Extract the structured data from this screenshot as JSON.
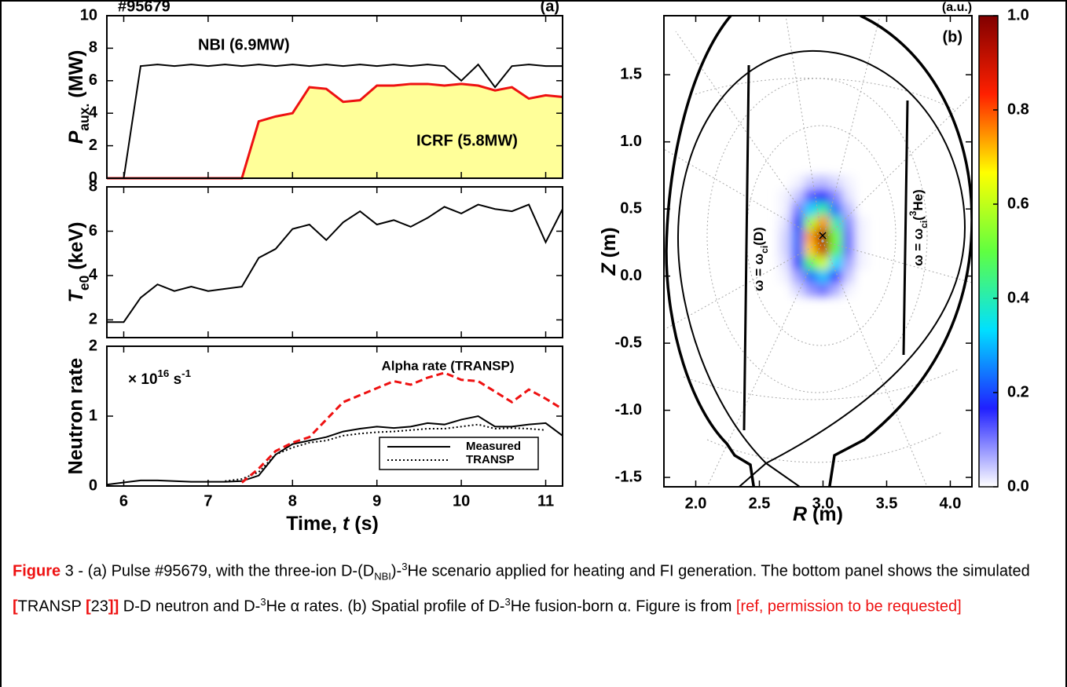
{
  "chart_data": [
    {
      "type": "line",
      "label": "#95679",
      "panel": "(a)",
      "ylabel": [
        "P",
        "aux.",
        " (MW)"
      ],
      "x": [
        5.8,
        6.0,
        6.2,
        6.4,
        6.6,
        6.8,
        7.0,
        7.2,
        7.4,
        7.6,
        7.8,
        8.0,
        8.2,
        8.4,
        8.6,
        8.8,
        9.0,
        9.2,
        9.4,
        9.6,
        9.8,
        10.0,
        10.2,
        10.4,
        10.6,
        10.8,
        11.0,
        11.2
      ],
      "xlim": [
        5.8,
        11.2
      ],
      "ylim": [
        0,
        10
      ],
      "yticks": [
        0,
        2,
        4,
        6,
        8,
        10
      ],
      "series": [
        {
          "name": "NBI (6.9MW)",
          "color": "#000000",
          "style": "solid",
          "values": [
            0,
            0,
            6.9,
            7.0,
            6.9,
            7.0,
            6.9,
            7.0,
            6.9,
            7.0,
            6.9,
            7.0,
            6.9,
            7.0,
            6.9,
            7.0,
            6.9,
            7.0,
            6.9,
            7.0,
            6.9,
            6.0,
            7.0,
            5.6,
            6.9,
            7.0,
            6.9,
            6.9
          ]
        },
        {
          "name": "ICRF (5.8MW)",
          "color": "#ee1111",
          "fill": "#ffff99",
          "style": "solid",
          "values": [
            0,
            0,
            0,
            0,
            0,
            0,
            0,
            0,
            0,
            3.5,
            3.8,
            4.0,
            5.6,
            5.5,
            4.7,
            4.8,
            5.7,
            5.7,
            5.8,
            5.8,
            5.7,
            5.8,
            5.7,
            5.4,
            5.6,
            4.9,
            5.1,
            5.0
          ]
        }
      ]
    },
    {
      "type": "line",
      "ylabel": [
        "T",
        "e0",
        " (keV)"
      ],
      "x": [
        5.8,
        6.0,
        6.2,
        6.4,
        6.6,
        6.8,
        7.0,
        7.2,
        7.4,
        7.6,
        7.8,
        8.0,
        8.2,
        8.4,
        8.6,
        8.8,
        9.0,
        9.2,
        9.4,
        9.6,
        9.8,
        10.0,
        10.2,
        10.4,
        10.6,
        10.8,
        11.0,
        11.2
      ],
      "xlim": [
        5.8,
        11.2
      ],
      "ylim": [
        1.2,
        8
      ],
      "yticks": [
        2,
        4,
        6,
        8
      ],
      "series": [
        {
          "color": "#000000",
          "style": "solid",
          "values": [
            1.9,
            1.9,
            3.0,
            3.6,
            3.3,
            3.5,
            3.3,
            3.4,
            3.5,
            4.8,
            5.2,
            6.1,
            6.3,
            5.6,
            6.4,
            6.9,
            6.3,
            6.5,
            6.2,
            6.6,
            7.1,
            6.8,
            7.2,
            7.0,
            6.9,
            7.2,
            5.5,
            7.0
          ]
        }
      ]
    },
    {
      "type": "line",
      "ylabel": "Neutron rate",
      "xlabel": [
        "Time, ",
        "t",
        " (s)"
      ],
      "units": [
        "× 10",
        "16",
        " s",
        "-1"
      ],
      "x": [
        5.8,
        6.0,
        6.2,
        6.4,
        6.6,
        6.8,
        7.0,
        7.2,
        7.4,
        7.6,
        7.8,
        8.0,
        8.2,
        8.4,
        8.6,
        8.8,
        9.0,
        9.2,
        9.4,
        9.6,
        9.8,
        10.0,
        10.2,
        10.4,
        10.6,
        10.8,
        11.0,
        11.2
      ],
      "xlim": [
        5.8,
        11.2
      ],
      "xticks": [
        6,
        7,
        8,
        9,
        10,
        11
      ],
      "ylim": [
        0,
        2
      ],
      "yticks": [
        0,
        1,
        2
      ],
      "legend": "lower right",
      "series": [
        {
          "name": "Measured",
          "color": "#000000",
          "style": "solid",
          "values": [
            0.02,
            0.05,
            0.08,
            0.08,
            0.07,
            0.06,
            0.06,
            0.06,
            0.07,
            0.15,
            0.45,
            0.6,
            0.65,
            0.7,
            0.78,
            0.82,
            0.85,
            0.83,
            0.85,
            0.9,
            0.88,
            0.95,
            1.0,
            0.85,
            0.85,
            0.88,
            0.9,
            0.72
          ]
        },
        {
          "name": "TRANSP",
          "color": "#000000",
          "style": "dotted",
          "values": [
            null,
            null,
            null,
            null,
            null,
            null,
            null,
            0.07,
            0.1,
            0.2,
            0.45,
            0.55,
            0.62,
            0.65,
            0.72,
            0.75,
            0.77,
            0.78,
            0.8,
            0.82,
            0.82,
            0.85,
            0.88,
            0.82,
            0.83,
            0.82,
            0.8,
            null
          ]
        },
        {
          "name": "Alpha rate (TRANSP)",
          "color": "#ee1111",
          "style": "dashed",
          "values": [
            null,
            null,
            null,
            null,
            null,
            null,
            null,
            null,
            0.05,
            0.25,
            0.5,
            0.62,
            0.7,
            0.95,
            1.2,
            1.3,
            1.4,
            1.5,
            1.45,
            1.55,
            1.62,
            1.52,
            1.5,
            1.35,
            1.2,
            1.38,
            1.25,
            1.1
          ]
        }
      ]
    },
    {
      "type": "heatmap",
      "panel": "(b)",
      "colorbar_label": "(a.u.)",
      "xlabel": [
        "R",
        " (m)"
      ],
      "ylabel": [
        "Z",
        " (m)"
      ],
      "annotations": [
        [
          "ω = ω",
          "ci",
          "(D)"
        ],
        [
          "ω = ω",
          "ci",
          "(",
          "3",
          "He)"
        ]
      ],
      "xlim": [
        1.75,
        4.17
      ],
      "ylim": [
        -1.57,
        1.94
      ],
      "xticks": [
        {
          "value": 2,
          "label": "2.0"
        },
        2.5,
        {
          "value": 3,
          "label": "3.0"
        },
        3.5,
        {
          "value": 4,
          "label": "4.0"
        }
      ],
      "yticks": [
        1.5,
        {
          "value": 1,
          "label": "1.0"
        },
        0.5,
        {
          "value": 0,
          "label": "0.0"
        },
        -0.5,
        {
          "value": -1,
          "label": "-1.0"
        },
        -1.5
      ],
      "clim": [
        0,
        1
      ],
      "cticks": [
        {
          "value": 0,
          "label": "0.0"
        },
        0.2,
        0.4,
        0.6,
        0.8,
        {
          "value": 1,
          "label": "1.0"
        }
      ],
      "colorscale": [
        "#ffffff",
        "#2020ff",
        "#00e0ff",
        "#60ff40",
        "#ffff00",
        "#ff2000",
        "#800000"
      ],
      "x": [
        2.7,
        2.8,
        2.9,
        3.0,
        3.1,
        3.2,
        3.3
      ],
      "y": [
        -0.1,
        0.0,
        0.1,
        0.2,
        0.3,
        0.4,
        0.5,
        0.6,
        0.7
      ],
      "values": [
        [
          0.0,
          0.03,
          0.08,
          0.11,
          0.06,
          0.01,
          0.0
        ],
        [
          0.01,
          0.07,
          0.23,
          0.31,
          0.16,
          0.04,
          0.0
        ],
        [
          0.02,
          0.15,
          0.47,
          0.62,
          0.33,
          0.07,
          0.01
        ],
        [
          0.03,
          0.22,
          0.7,
          0.91,
          0.49,
          0.11,
          0.01
        ],
        [
          0.03,
          0.23,
          0.74,
          0.97,
          0.52,
          0.11,
          0.01
        ],
        [
          0.02,
          0.18,
          0.57,
          0.75,
          0.4,
          0.09,
          0.01
        ],
        [
          0.01,
          0.1,
          0.32,
          0.42,
          0.23,
          0.05,
          0.0
        ],
        [
          0.01,
          0.04,
          0.13,
          0.17,
          0.09,
          0.02,
          0.0
        ],
        [
          0.0,
          0.01,
          0.04,
          0.05,
          0.03,
          0.01,
          0.0
        ]
      ]
    }
  ],
  "caption": [
    "Figure",
    " 3 - (a) Pulse #95679, with the three-ion D-(D",
    "NBI",
    ")-",
    "3",
    "He scenario applied for heating and FI generation. The bottom panel shows the simulated ",
    "[",
    "TRANSP ",
    "[",
    "23",
    "]]",
    " D-D neutron and D-",
    "3",
    "He α rates. (b) Spatial profile of D-",
    "3",
    "He fusion-born α. Figure is from ",
    "[ref, permission to be requested]"
  ]
}
